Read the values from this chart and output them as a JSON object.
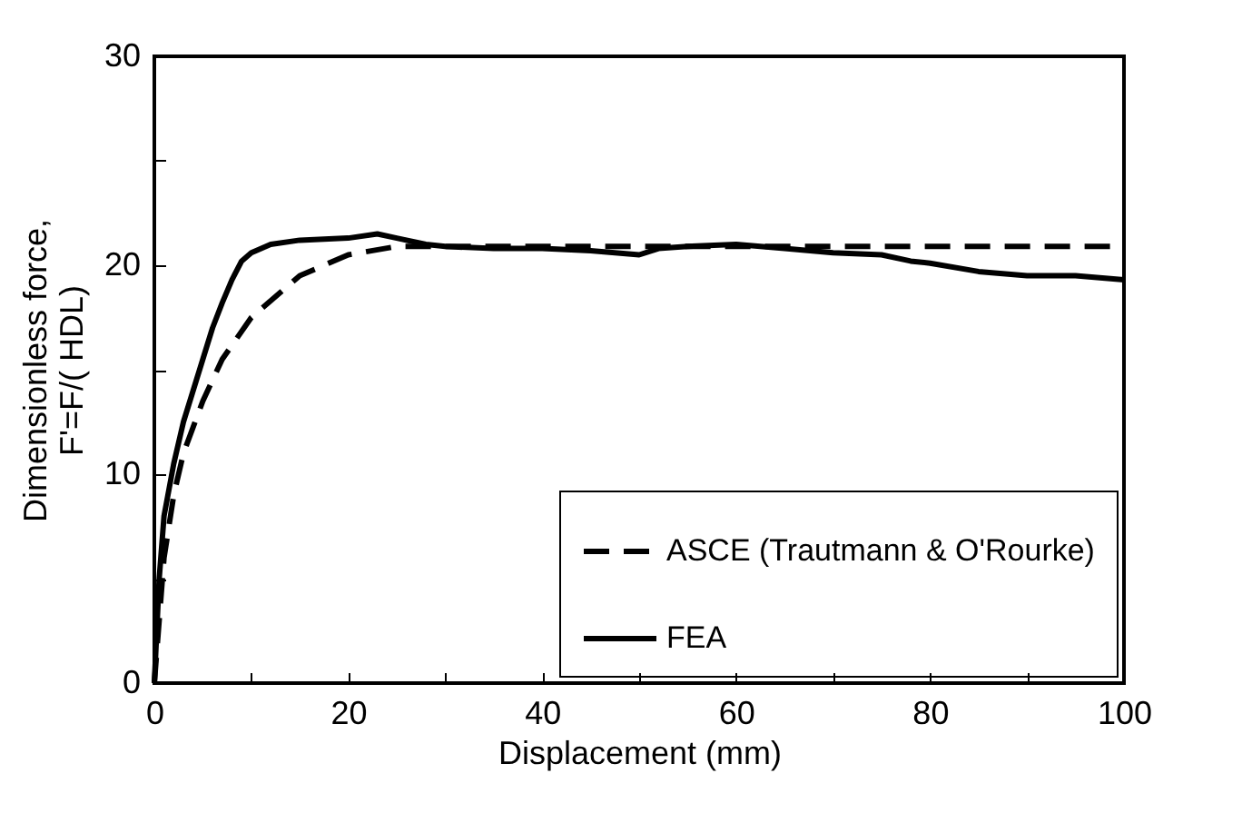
{
  "chart_data": {
    "type": "line",
    "xlabel": "Displacement (mm)",
    "ylabel": "Dimensionless force, F'=F/( HDL)",
    "xlim": [
      0,
      100
    ],
    "ylim": [
      0,
      30
    ],
    "xticks": [
      0,
      {
        "value": 10,
        "label": null
      },
      20,
      {
        "value": 30,
        "label": null
      },
      40,
      {
        "value": 50,
        "label": null
      },
      60,
      {
        "value": 70,
        "label": null
      },
      80,
      {
        "value": 90,
        "label": null
      },
      100
    ],
    "yticks": [
      0,
      {
        "value": 5,
        "label": null
      },
      10,
      {
        "value": 15,
        "label": null
      },
      20,
      {
        "value": 25,
        "label": null
      },
      30
    ],
    "grid": false,
    "legend": "bottom right",
    "marker": "none",
    "series": [
      {
        "name": "ASCE (Trautmann & O'Rourke)",
        "color": "#000000",
        "line_style": "dashed",
        "x": [
          0,
          1,
          2,
          3,
          5,
          7,
          10,
          15,
          20,
          25,
          30,
          100
        ],
        "values": [
          0,
          6,
          9,
          11,
          13.5,
          15.5,
          17.5,
          19.5,
          20.5,
          20.9,
          20.9,
          20.9
        ]
      },
      {
        "name": "FEA",
        "color": "#000000",
        "line_style": "solid",
        "x": [
          0,
          0.5,
          1,
          2,
          3,
          4,
          5,
          6,
          7,
          8,
          9,
          10,
          12,
          15,
          20,
          23,
          25,
          28,
          30,
          35,
          40,
          45,
          50,
          52,
          55,
          60,
          65,
          70,
          75,
          78,
          80,
          85,
          90,
          95,
          100
        ],
        "values": [
          0,
          5,
          8,
          10.5,
          12.5,
          14,
          15.5,
          17,
          18.2,
          19.3,
          20.2,
          20.6,
          21,
          21.2,
          21.3,
          21.5,
          21.3,
          21,
          20.9,
          20.8,
          20.8,
          20.7,
          20.5,
          20.8,
          20.9,
          21,
          20.8,
          20.6,
          20.5,
          20.2,
          20.1,
          19.7,
          19.5,
          19.5,
          19.3
        ]
      }
    ]
  }
}
